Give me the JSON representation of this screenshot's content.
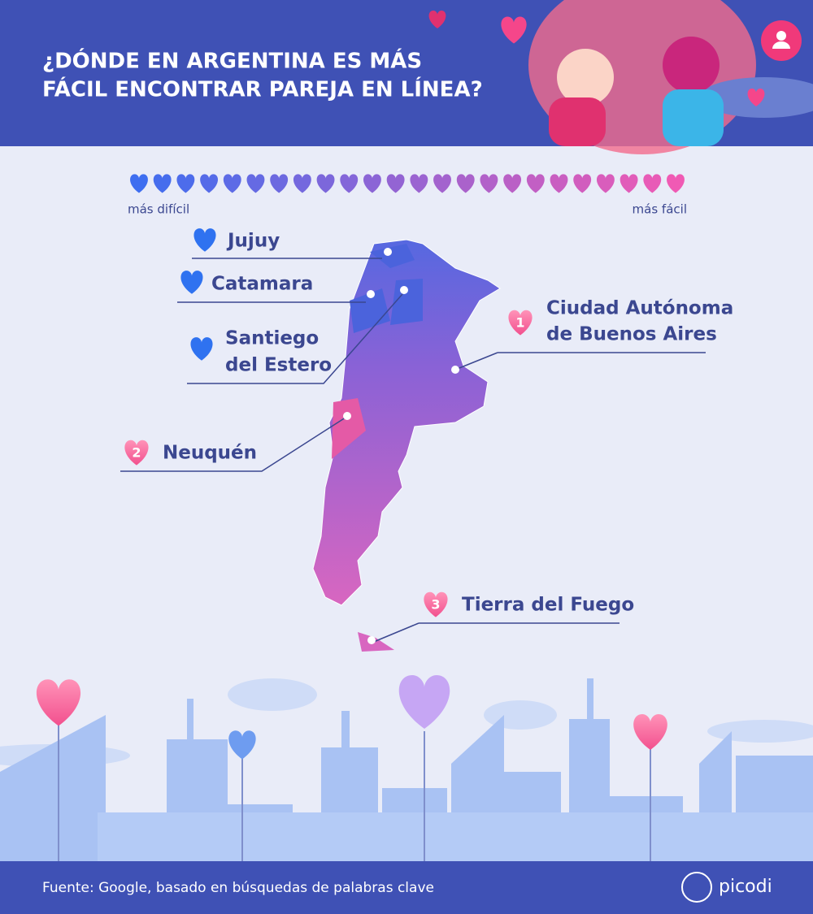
{
  "header": {
    "title_lines": [
      "¿DÓNDE EN ARGENTINA ES MÁS",
      "FÁCIL ENCONTRAR PAREJA EN LÍNEA?"
    ]
  },
  "scale": {
    "low_label": "más difícil",
    "high_label": "más fácil"
  },
  "hardest": [
    {
      "lines": [
        "Jujuy"
      ]
    },
    {
      "lines": [
        "Catamara"
      ]
    },
    {
      "lines": [
        "Santiego",
        "del Estero"
      ]
    }
  ],
  "easiest": [
    {
      "rank": 1,
      "lines": [
        "Ciudad Autónoma",
        "de Buenos Aires"
      ]
    },
    {
      "rank": 2,
      "lines": [
        "Neuquén"
      ]
    },
    {
      "rank": 3,
      "lines": [
        "Tierra del Fuego"
      ]
    }
  ],
  "footer": {
    "source": "Fuente: Google, basado en búsquedas de palabras clave",
    "brand": "picodi"
  }
}
